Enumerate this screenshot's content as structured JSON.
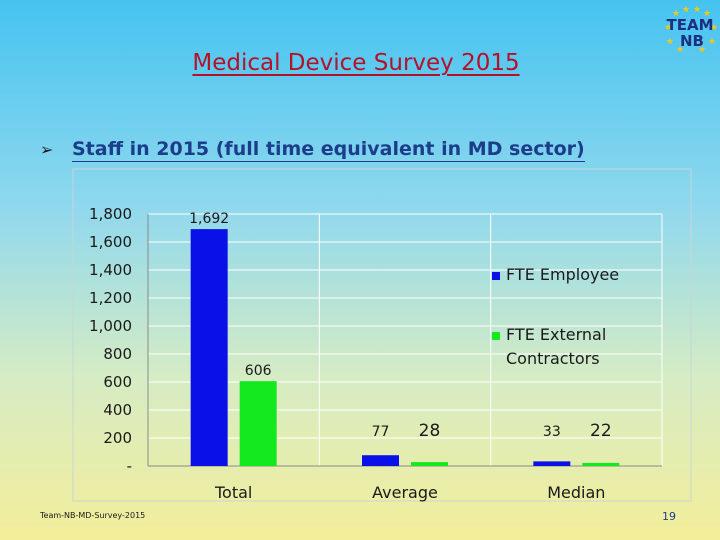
{
  "slide": {
    "title": "Medical Device Survey 2015",
    "bullet": "Staff in 2015 (full time equivalent in MD sector)",
    "footer_left": "Team-NB-MD-Survey-2015",
    "page_number": "19",
    "logo_text_top": "TEAM",
    "logo_text_bottom": "NB",
    "bullet_icon": "arrowhead-bullet-icon"
  },
  "colors": {
    "title": "#b3122a",
    "bullet_text": "#1c3d8a",
    "fte_employee": "#0a10e8",
    "fte_external": "#14e81e"
  },
  "chart_data": {
    "type": "bar",
    "categories": [
      "Total",
      "Average",
      "Median"
    ],
    "series": [
      {
        "name": "FTE Employee",
        "values": [
          1692,
          77,
          33
        ],
        "labels": [
          "1,692",
          "77",
          "33"
        ]
      },
      {
        "name": "FTE External\nContractors",
        "values": [
          606,
          28,
          22
        ],
        "labels": [
          "606",
          "28",
          "22"
        ]
      }
    ],
    "ylim": [
      0,
      1800
    ],
    "yticks": [
      0,
      200,
      400,
      600,
      800,
      1000,
      1200,
      1400,
      1600,
      1800
    ],
    "ytick_labels": [
      "-",
      "200",
      "400",
      "600",
      "800",
      "1,000",
      "1,200",
      "1,400",
      "1,600",
      "1,800"
    ],
    "grid": true,
    "legend": "right"
  }
}
